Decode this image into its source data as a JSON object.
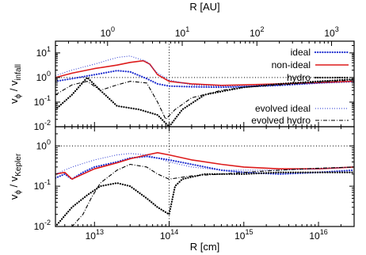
{
  "chart_data": [
    {
      "type": "line",
      "panel": "top",
      "ylabel_main": "v",
      "ylabel_sub1": "ϕ",
      "ylabel_mid": " / v",
      "ylabel_sub2": "infall",
      "yscale": "log",
      "ylim": [
        0.01,
        30
      ],
      "yticks": [
        {
          "v": 0.01,
          "m": "10",
          "e": "-2"
        },
        {
          "v": 0.1,
          "m": "10",
          "e": "-1"
        },
        {
          "v": 1,
          "m": "10",
          "e": "0"
        },
        {
          "v": 10,
          "m": "10",
          "e": "1"
        }
      ],
      "reference_line": 1,
      "series": [
        {
          "name": "ideal",
          "color": "#2030d0",
          "style": "dotted-thick",
          "x": [
            3000000000000.0,
            5000000000000.0,
            10000000000000.0,
            20000000000000.0,
            30000000000000.0,
            50000000000000.0,
            70000000000000.0,
            100000000000000.0,
            200000000000000.0,
            500000000000000.0,
            1000000000000000.0,
            3000000000000000.0,
            1e+16,
            3e+16
          ],
          "y": [
            0.7,
            0.9,
            1.3,
            1.9,
            1.7,
            0.9,
            0.55,
            0.45,
            0.42,
            0.4,
            0.42,
            0.48,
            0.6,
            0.7
          ]
        },
        {
          "name": "non-ideal",
          "color": "#dd1c1c",
          "style": "solid",
          "x": [
            3000000000000.0,
            5000000000000.0,
            10000000000000.0,
            20000000000000.0,
            30000000000000.0,
            45000000000000.0,
            55000000000000.0,
            70000000000000.0,
            100000000000000.0,
            200000000000000.0,
            500000000000000.0,
            1000000000000000.0,
            3000000000000000.0,
            1e+16,
            3e+16
          ],
          "y": [
            1.0,
            1.5,
            2.3,
            3.2,
            4.1,
            4.8,
            3.5,
            1.3,
            0.7,
            0.55,
            0.48,
            0.5,
            0.55,
            0.62,
            0.7
          ]
        },
        {
          "name": "hydro",
          "color": "#000000",
          "style": "dotted-thick",
          "x": [
            3000000000000.0,
            5000000000000.0,
            8000000000000.0,
            12000000000000.0,
            20000000000000.0,
            40000000000000.0,
            70000000000000.0,
            100000000000000.0,
            150000000000000.0,
            300000000000000.0,
            1000000000000000.0,
            3000000000000000.0,
            1e+16,
            3e+16
          ],
          "y": [
            0.05,
            0.2,
            1.0,
            0.3,
            0.07,
            0.05,
            0.03,
            0.01,
            0.05,
            0.2,
            0.4,
            0.55,
            0.7,
            0.85
          ]
        },
        {
          "name": "evolved ideal",
          "color": "#2030d0",
          "style": "dotted-thin",
          "x": [
            3000000000000.0,
            5000000000000.0,
            10000000000000.0,
            20000000000000.0,
            30000000000000.0,
            50000000000000.0,
            70000000000000.0,
            100000000000000.0,
            200000000000000.0,
            500000000000000.0,
            1000000000000000.0,
            3000000000000000.0,
            1e+16,
            3e+16
          ],
          "y": [
            1.2,
            2.0,
            3.5,
            6.5,
            7.5,
            4.5,
            1.5,
            0.8,
            0.5,
            0.45,
            0.45,
            0.5,
            0.6,
            0.65
          ]
        },
        {
          "name": "evolved hydro",
          "color": "#000000",
          "style": "dashdot",
          "x": [
            3000000000000.0,
            5000000000000.0,
            8000000000000.0,
            12000000000000.0,
            20000000000000.0,
            30000000000000.0,
            50000000000000.0,
            70000000000000.0,
            90000000000000.0,
            120000000000000.0,
            200000000000000.0,
            500000000000000.0,
            1000000000000000.0,
            3000000000000000.0,
            1e+16,
            3e+16
          ],
          "y": [
            0.2,
            0.5,
            0.7,
            0.3,
            0.5,
            0.7,
            0.6,
            0.1,
            0.02,
            0.05,
            0.15,
            0.3,
            0.4,
            0.5,
            0.65,
            0.8
          ]
        }
      ]
    },
    {
      "type": "line",
      "panel": "bottom",
      "ylabel_main": "v",
      "ylabel_sub1": "ϕ",
      "ylabel_mid": " / v",
      "ylabel_sub2": "Kepler",
      "yscale": "log",
      "ylim": [
        0.01,
        3
      ],
      "yticks": [
        {
          "v": 0.01,
          "m": "10",
          "e": "-2"
        },
        {
          "v": 0.1,
          "m": "10",
          "e": "-1"
        },
        {
          "v": 1,
          "m": "10",
          "e": "0"
        }
      ],
      "reference_line": 1,
      "xlabel": "R  [cm]",
      "xscale": "log",
      "xlim": [
        3000000000000.0,
        3e+16
      ],
      "xticks": [
        {
          "v": 10000000000000.0,
          "m": "10",
          "e": "13"
        },
        {
          "v": 100000000000000.0,
          "m": "10",
          "e": "14"
        },
        {
          "v": 1000000000000000.0,
          "m": "10",
          "e": "15"
        },
        {
          "v": 1e+16,
          "m": "10",
          "e": "16"
        }
      ],
      "series": [
        {
          "name": "ideal",
          "color": "#2030d0",
          "style": "dotted-thick",
          "x": [
            3000000000000.0,
            4000000000000.0,
            5000000000000.0,
            7000000000000.0,
            10000000000000.0,
            20000000000000.0,
            30000000000000.0,
            50000000000000.0,
            70000000000000.0,
            100000000000000.0,
            200000000000000.0,
            500000000000000.0,
            1000000000000000.0,
            3000000000000000.0,
            1e+16,
            3e+16
          ],
          "y": [
            0.16,
            0.2,
            0.15,
            0.22,
            0.3,
            0.4,
            0.5,
            0.55,
            0.5,
            0.45,
            0.35,
            0.25,
            0.22,
            0.2,
            0.22,
            0.25
          ]
        },
        {
          "name": "non-ideal",
          "color": "#dd1c1c",
          "style": "solid",
          "x": [
            3000000000000.0,
            4000000000000.0,
            5000000000000.0,
            7000000000000.0,
            10000000000000.0,
            20000000000000.0,
            30000000000000.0,
            50000000000000.0,
            70000000000000.0,
            100000000000000.0,
            200000000000000.0,
            500000000000000.0,
            1000000000000000.0,
            3000000000000000.0,
            1e+16,
            3e+16
          ],
          "y": [
            0.2,
            0.22,
            0.15,
            0.2,
            0.27,
            0.38,
            0.48,
            0.6,
            0.68,
            0.6,
            0.45,
            0.35,
            0.3,
            0.27,
            0.27,
            0.3
          ]
        },
        {
          "name": "hydro",
          "color": "#000000",
          "style": "dotted-thick",
          "x": [
            3000000000000.0,
            5000000000000.0,
            8000000000000.0,
            12000000000000.0,
            20000000000000.0,
            30000000000000.0,
            50000000000000.0,
            70000000000000.0,
            100000000000000.0,
            120000000000000.0,
            150000000000000.0,
            300000000000000.0,
            1000000000000000.0,
            3000000000000000.0,
            1e+16,
            3e+16
          ],
          "y": [
            0.01,
            0.03,
            0.06,
            0.1,
            0.12,
            0.1,
            0.05,
            0.03,
            0.02,
            0.1,
            0.15,
            0.2,
            0.2,
            0.22,
            0.22,
            0.22
          ]
        },
        {
          "name": "evolved ideal",
          "color": "#2030d0",
          "style": "dotted-thin",
          "x": [
            3000000000000.0,
            5000000000000.0,
            10000000000000.0,
            20000000000000.0,
            30000000000000.0,
            50000000000000.0,
            70000000000000.0,
            100000000000000.0,
            200000000000000.0,
            500000000000000.0,
            1000000000000000.0,
            3000000000000000.0,
            1e+16,
            3e+16
          ],
          "y": [
            0.2,
            0.3,
            0.45,
            0.6,
            0.65,
            0.6,
            0.5,
            0.4,
            0.3,
            0.25,
            0.25,
            0.25,
            0.27,
            0.3
          ]
        },
        {
          "name": "evolved hydro",
          "color": "#000000",
          "style": "dashdot",
          "x": [
            3000000000000.0,
            5000000000000.0,
            7000000000000.0,
            9000000000000.0,
            12000000000000.0,
            20000000000000.0,
            30000000000000.0,
            50000000000000.0,
            70000000000000.0,
            100000000000000.0,
            200000000000000.0,
            500000000000000.0,
            1000000000000000.0,
            3000000000000000.0,
            1e+16,
            3e+16
          ],
          "y": [
            0.01,
            0.01,
            0.02,
            0.05,
            0.12,
            0.25,
            0.35,
            0.3,
            0.2,
            0.15,
            0.18,
            0.2,
            0.22,
            0.25,
            0.28,
            0.3
          ]
        }
      ]
    }
  ],
  "top_axis": {
    "label": "R   [AU]",
    "scale": "log",
    "ticks": [
      {
        "v": 1,
        "m": "10",
        "e": "0"
      },
      {
        "v": 10,
        "m": "10",
        "e": "1"
      },
      {
        "v": 100,
        "m": "10",
        "e": "2"
      },
      {
        "v": 1000,
        "m": "10",
        "e": "3"
      }
    ]
  },
  "vertical_marker_x": 100000000000000.0,
  "legend": {
    "placement": "top-right (two groups)",
    "items": [
      {
        "label": "ideal",
        "color": "#2030d0",
        "style": "dotted-thick",
        "panel": "top"
      },
      {
        "label": "non-ideal",
        "color": "#dd1c1c",
        "style": "solid",
        "panel": "top"
      },
      {
        "label": "hydro",
        "color": "#000000",
        "style": "dotted-thick",
        "panel": "top"
      },
      {
        "label": "evolved ideal",
        "color": "#2030d0",
        "style": "dotted-thin",
        "panel": "top"
      },
      {
        "label": "evolved hydro",
        "color": "#000000",
        "style": "dashdot",
        "panel": "top"
      }
    ]
  }
}
